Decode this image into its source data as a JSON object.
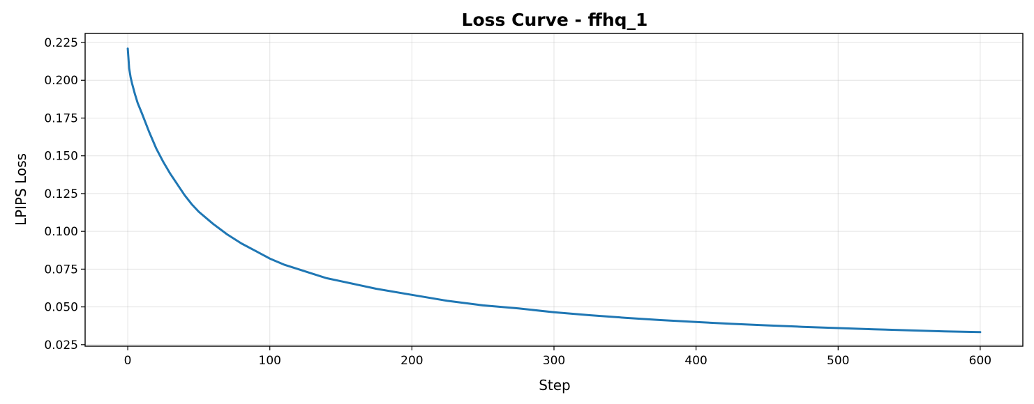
{
  "chart_data": {
    "type": "line",
    "title": "Loss Curve - ffhq_1",
    "xlabel": "Step",
    "ylabel": "LPIPS Loss",
    "xlim": [
      -30,
      630
    ],
    "ylim": [
      0.024,
      0.231
    ],
    "xticks": [
      0,
      100,
      200,
      300,
      400,
      500,
      600
    ],
    "xtick_labels": [
      "0",
      "100",
      "200",
      "300",
      "400",
      "500",
      "600"
    ],
    "yticks": [
      0.025,
      0.05,
      0.075,
      0.1,
      0.125,
      0.15,
      0.175,
      0.2,
      0.225
    ],
    "ytick_labels": [
      "0.025",
      "0.050",
      "0.075",
      "0.100",
      "0.125",
      "0.150",
      "0.175",
      "0.200",
      "0.225"
    ],
    "grid": true,
    "series": [
      {
        "color": "#1f77b4",
        "x": [
          0,
          1,
          2,
          3,
          5,
          7,
          10,
          15,
          20,
          25,
          30,
          35,
          40,
          45,
          50,
          60,
          70,
          80,
          90,
          100,
          110,
          120,
          130,
          140,
          150,
          175,
          200,
          225,
          250,
          275,
          300,
          325,
          350,
          375,
          400,
          425,
          450,
          475,
          500,
          525,
          550,
          575,
          600
        ],
        "y": [
          0.221,
          0.208,
          0.202,
          0.198,
          0.191,
          0.185,
          0.178,
          0.166,
          0.155,
          0.146,
          0.138,
          0.131,
          0.124,
          0.118,
          0.113,
          0.105,
          0.098,
          0.092,
          0.087,
          0.082,
          0.078,
          0.075,
          0.072,
          0.069,
          0.067,
          0.062,
          0.058,
          0.054,
          0.051,
          0.049,
          0.0465,
          0.0445,
          0.0428,
          0.0413,
          0.04,
          0.0388,
          0.0378,
          0.0368,
          0.036,
          0.0352,
          0.0345,
          0.0338,
          0.0333
        ]
      }
    ]
  }
}
